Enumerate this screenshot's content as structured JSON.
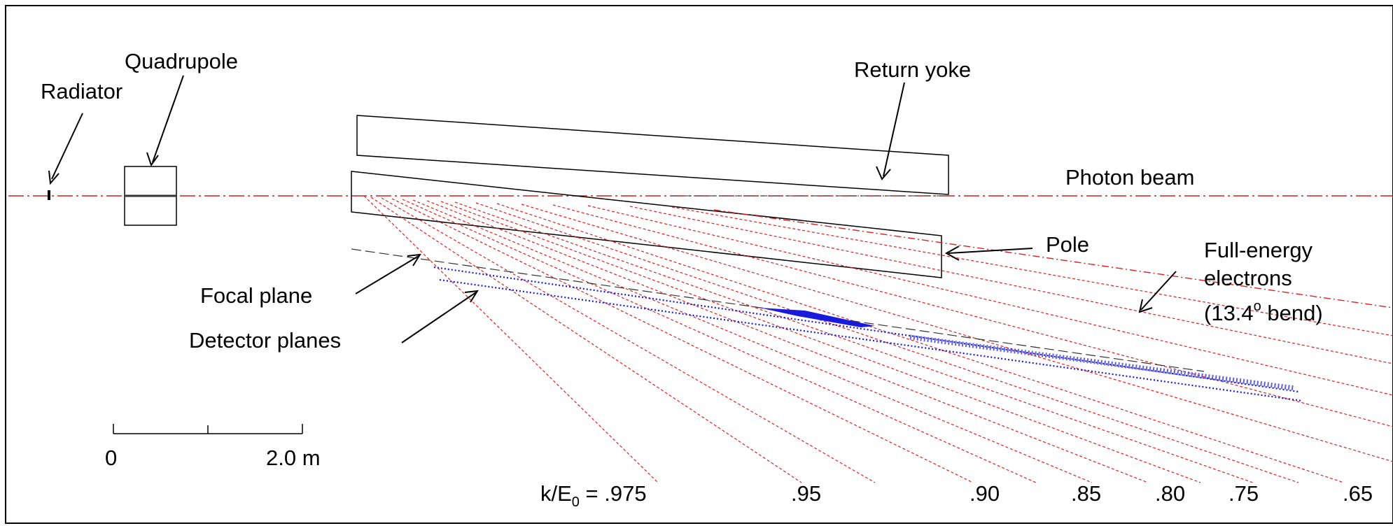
{
  "labels": {
    "radiator": "Radiator",
    "quadrupole": "Quadrupole",
    "return_yoke": "Return yoke",
    "photon_beam": "Photon beam",
    "pole": "Pole",
    "full_energy_line1": "Full-energy",
    "full_energy_line2": "electrons",
    "full_energy_line3_pre": "(13.4",
    "full_energy_degree": "o",
    "full_energy_line3_post": " bend)",
    "focal_plane": "Focal plane",
    "detector_planes": "Detector planes"
  },
  "scale_bar": {
    "start_label": "0",
    "end_label": "2.0 m"
  },
  "energy_axis": {
    "prefix_k": "k/E",
    "prefix_sub": "0",
    "prefix_eq": " = ",
    "ticks": [
      ".975",
      ".95",
      ".90",
      ".85",
      ".80",
      ".75",
      ".65"
    ]
  },
  "colors": {
    "electron_trajectories": "#e02020",
    "photon_beam": "#cc2020",
    "detectors": "#1a1adc",
    "outline": "#000000",
    "focal_plane": "#333333"
  }
}
